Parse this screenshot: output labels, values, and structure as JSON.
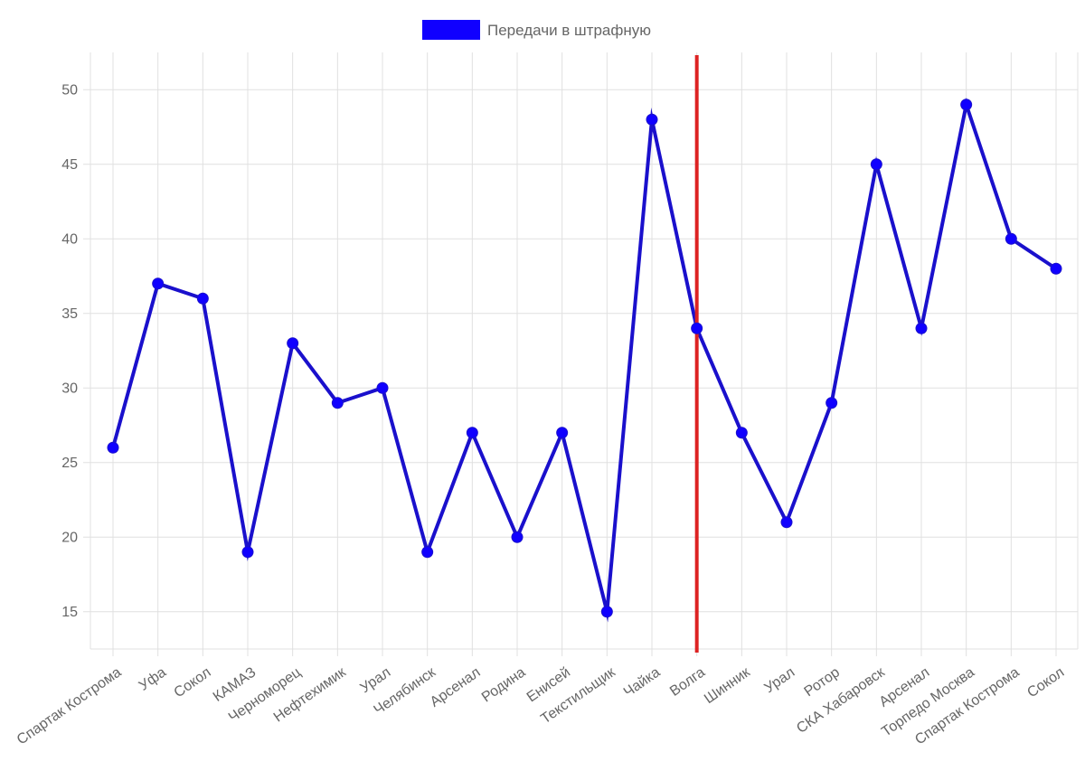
{
  "chart_data": {
    "type": "line",
    "legend": {
      "position": "top-center"
    },
    "categories": [
      "Спартак Кострома",
      "Уфа",
      "Сокол",
      "КАМАЗ",
      "Черноморец",
      "Нефтехимик",
      "Урал",
      "Челябинск",
      "Арсенал",
      "Родина",
      "Енисей",
      "Текстильщик",
      "Чайка",
      "Волга",
      "Шинник",
      "Урал",
      "Ротор",
      "СКА Хабаровск",
      "Арсенал",
      "Торпедо Москва",
      "Спартак Кострома",
      "Сокол"
    ],
    "series": [
      {
        "name": "Передачи в штрафную",
        "color": "#1000ff",
        "line_color": "#1a10cc",
        "values": [
          26,
          37,
          36,
          19,
          33,
          29,
          30,
          19,
          27,
          20,
          27,
          15,
          48,
          34,
          27,
          21,
          29,
          45,
          34,
          49,
          40,
          38
        ]
      }
    ],
    "ylim": [
      12.5,
      52.5
    ],
    "yticks": [
      15,
      20,
      25,
      30,
      35,
      40,
      45,
      50
    ],
    "grid": true,
    "marker_line": {
      "category_index": 13,
      "color": "#dd2222"
    },
    "title": "",
    "xlabel": "",
    "ylabel": ""
  }
}
